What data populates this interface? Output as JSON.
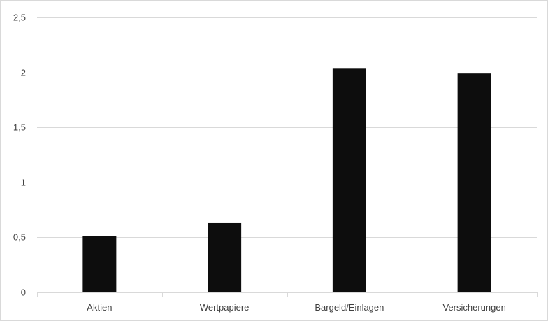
{
  "chart_data": {
    "type": "bar",
    "categories": [
      "Aktien",
      "Wertpapiere",
      "Bargeld/Einlagen",
      "Versicherungen"
    ],
    "values": [
      0.51,
      0.63,
      2.04,
      1.99
    ],
    "ylim": [
      0,
      2.5
    ],
    "yticks": [
      0,
      0.5,
      1,
      1.5,
      2,
      2.5
    ],
    "ytick_labels": [
      "0",
      "0,5",
      "1",
      "1,5",
      "2",
      "2,5"
    ],
    "grid": true,
    "legend": "none",
    "bar_color": "#0d0d0d",
    "grid_color": "#d9d9d9",
    "title": "",
    "xlabel": "",
    "ylabel": ""
  }
}
